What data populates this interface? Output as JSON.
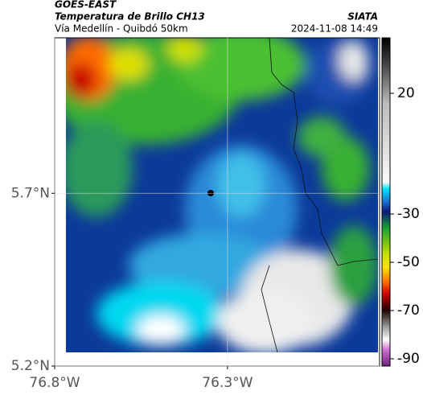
{
  "header": {
    "title": "GOES-EAST",
    "subtitle": "Temperatura de Brillo CH13",
    "region": "Vía Medellín - Quibdó 50km",
    "source": "SIATA",
    "timestamp": "2024-11-08 14:49"
  },
  "map": {
    "xlim": [
      -76.8,
      -75.86
    ],
    "ylim": [
      5.2,
      6.15
    ],
    "xticks": [
      {
        "value": -76.8,
        "label": "76.8°W"
      },
      {
        "value": -76.3,
        "label": "76.3°W"
      }
    ],
    "yticks": [
      {
        "value": 5.2,
        "label": "5.2°N"
      },
      {
        "value": 5.7,
        "label": "5.7°N"
      }
    ]
  },
  "colorbar": {
    "clim": [
      -93,
      43
    ],
    "ticks": [
      20,
      -30,
      -50,
      -70,
      -90
    ]
  }
}
